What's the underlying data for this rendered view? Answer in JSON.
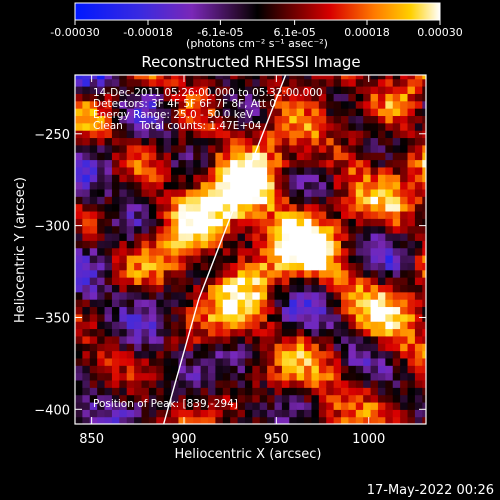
{
  "chart_data": {
    "type": "heatmap",
    "title": "Reconstructed RHESSI Image",
    "xlabel": "Heliocentric X (arcsec)",
    "ylabel": "Heliocentric Y (arcsec)",
    "xlim": [
      841,
      1031
    ],
    "ylim": [
      -408,
      -218
    ],
    "x_ticks": [
      850,
      900,
      950,
      1000
    ],
    "y_ticks": [
      -250,
      -300,
      -350,
      -400
    ],
    "colorbar": {
      "range": [
        -0.0003,
        0.0003
      ],
      "tick_values": [
        -0.0003,
        -0.00018,
        -6.1e-05,
        6.1e-05,
        0.00018,
        0.0003
      ],
      "tick_labels": [
        "-0.00030",
        "-0.00018",
        "-6.1e-05",
        "6.1e-05",
        "0.00018",
        "0.00030"
      ],
      "unit_text": "(photons cm⁻² s⁻¹ asec⁻²)"
    },
    "annotations": [
      "14-Dec-2011 05:26:00.000 to 05:32:00.000",
      "Detectors: 3F 4F 5F 6F 7F 8F, Att 0",
      "Energy Range: 25.0 - 50.0 keV",
      "Clean     Total counts: 1.47E+04"
    ],
    "peak_label": "Position of Peak: [839,-294]",
    "limb_line": {
      "x": [
        889,
        908,
        931,
        955
      ],
      "y": [
        -408,
        -340,
        -280,
        -218
      ]
    },
    "grid": false,
    "pixel_size_arcsec": 4
  },
  "footer": {
    "timestamp": "17-May-2022 00:26"
  },
  "colors": {
    "background": "#000000",
    "foreground": "#ffffff",
    "colormap": "blue-purple-black-red-orange-yellow-white"
  }
}
